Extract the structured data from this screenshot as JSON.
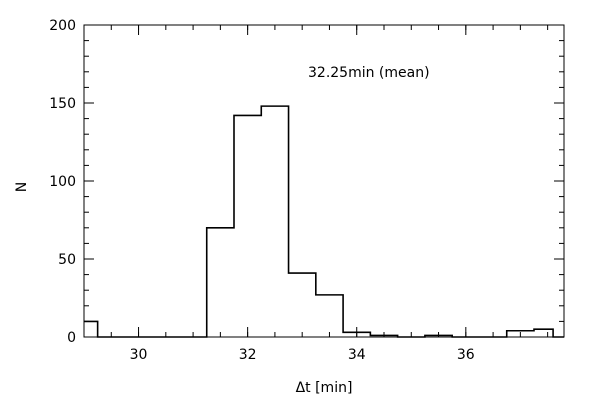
{
  "chart_data": {
    "type": "histogram",
    "xlabel": "Δt  [min]",
    "ylabel": "N",
    "annotation": "32.25min  (mean)",
    "xlim": [
      29.0,
      37.8
    ],
    "ylim": [
      0,
      200
    ],
    "x_ticks": [
      30,
      32,
      34,
      36
    ],
    "x_tick_labels": [
      "30",
      "32",
      "34",
      "36"
    ],
    "y_ticks": [
      0,
      50,
      100,
      150,
      200
    ],
    "y_tick_labels": [
      "0",
      "50",
      "100",
      "150",
      "200"
    ],
    "x_minor_step": 0.5,
    "y_minor_step": 10,
    "bin_edges": [
      29.0,
      29.25,
      29.75,
      30.25,
      30.75,
      31.25,
      31.75,
      32.25,
      32.75,
      33.25,
      33.75,
      34.25,
      34.75,
      35.25,
      35.75,
      36.25,
      36.75,
      37.25,
      37.6,
      37.8
    ],
    "counts": [
      10,
      0,
      0,
      0,
      0,
      70,
      142,
      148,
      41,
      27,
      3,
      1,
      0,
      1,
      0,
      0,
      4,
      5,
      0
    ],
    "grid": false,
    "line_color": "#000000"
  }
}
